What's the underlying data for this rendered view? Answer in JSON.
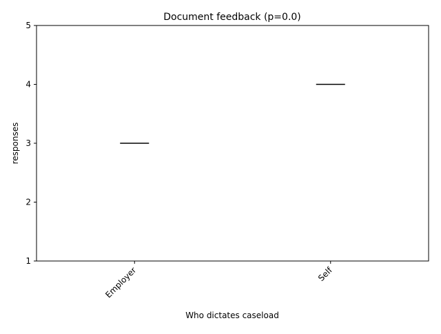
{
  "chart_data": {
    "type": "box",
    "title": "Document feedback (p=0.0)",
    "xlabel": "Who dictates caseload",
    "ylabel": "responses",
    "categories": [
      "Employer",
      "Self"
    ],
    "series": [
      {
        "values": [
          3,
          4
        ],
        "box_stats": [
          {
            "category": "Employer",
            "min": 3,
            "q1": 3,
            "median": 3,
            "q3": 3,
            "max": 3
          },
          {
            "category": "Self",
            "min": 4,
            "q1": 4,
            "median": 4,
            "q3": 4,
            "max": 4
          }
        ]
      }
    ],
    "ylim": [
      1,
      5
    ],
    "yticks": [
      "1",
      "2",
      "3",
      "4",
      "5"
    ],
    "grid": false,
    "colors": {
      "median_line": "#000000",
      "axes": "#000000"
    }
  }
}
